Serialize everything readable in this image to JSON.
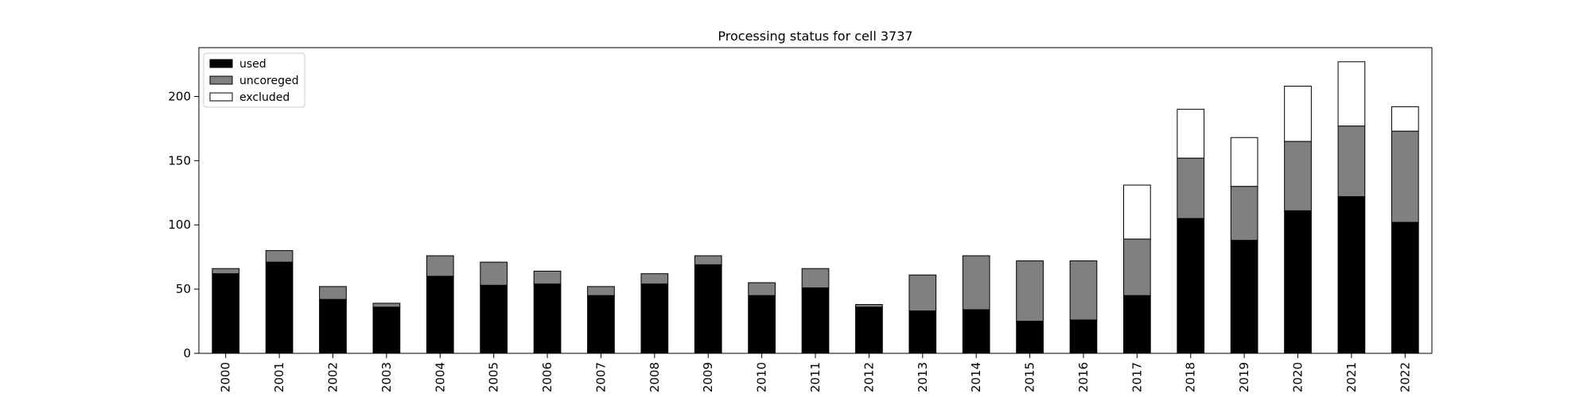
{
  "chart_data": {
    "type": "bar",
    "stacked": true,
    "title": "Processing status for cell 3737",
    "xlabel": "",
    "ylabel": "",
    "categories": [
      "2000",
      "2001",
      "2002",
      "2003",
      "2004",
      "2005",
      "2006",
      "2007",
      "2008",
      "2009",
      "2010",
      "2011",
      "2012",
      "2013",
      "2014",
      "2015",
      "2016",
      "2017",
      "2018",
      "2019",
      "2020",
      "2021",
      "2022"
    ],
    "series": [
      {
        "name": "used",
        "color": "#000000",
        "values": [
          62,
          71,
          42,
          36,
          60,
          53,
          54,
          45,
          54,
          69,
          45,
          51,
          36,
          33,
          34,
          25,
          26,
          45,
          105,
          88,
          111,
          122,
          102
        ]
      },
      {
        "name": "uncoreged",
        "color": "#808080",
        "values": [
          4,
          9,
          10,
          3,
          16,
          18,
          10,
          7,
          8,
          7,
          10,
          15,
          2,
          28,
          42,
          47,
          46,
          44,
          47,
          42,
          54,
          55,
          71
        ]
      },
      {
        "name": "excluded",
        "color": "#ffffff",
        "values": [
          0,
          0,
          0,
          0,
          0,
          0,
          0,
          0,
          0,
          0,
          0,
          0,
          0,
          0,
          0,
          0,
          0,
          42,
          38,
          38,
          43,
          50,
          19
        ]
      }
    ],
    "ylim": [
      0,
      238
    ],
    "yticks": [
      0,
      50,
      100,
      150,
      200
    ],
    "legend_position": "top-left",
    "grid": false
  }
}
